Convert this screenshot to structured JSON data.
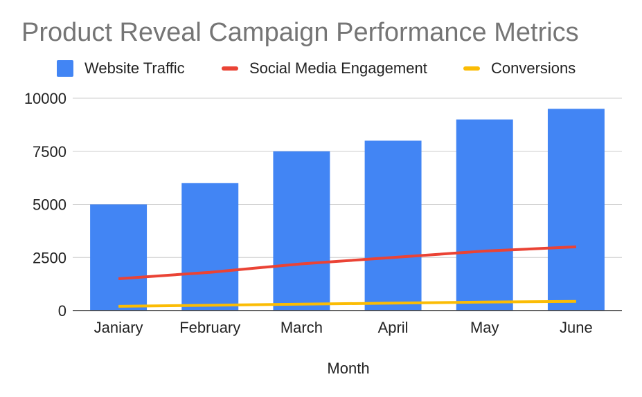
{
  "chart_data": {
    "type": "bar",
    "title": "Product Reveal Campaign Performance Metrics",
    "xlabel": "Month",
    "ylabel": "",
    "categories": [
      "Janiary",
      "February",
      "March",
      "April",
      "May",
      "June"
    ],
    "ylim": [
      0,
      10000
    ],
    "yticks": [
      0,
      2500,
      5000,
      7500,
      10000
    ],
    "grid": true,
    "legend_position": "top",
    "series": [
      {
        "name": "Website Traffic",
        "type": "bar",
        "color": "#4285f4",
        "values": [
          5000,
          6000,
          7500,
          8000,
          9000,
          9500
        ]
      },
      {
        "name": "Social Media Engagement",
        "type": "line",
        "color": "#ea4335",
        "values": [
          1500,
          1800,
          2200,
          2500,
          2800,
          3000
        ]
      },
      {
        "name": "Conversions",
        "type": "line",
        "color": "#fbbc04",
        "values": [
          200,
          250,
          300,
          350,
          400,
          430
        ]
      }
    ]
  }
}
